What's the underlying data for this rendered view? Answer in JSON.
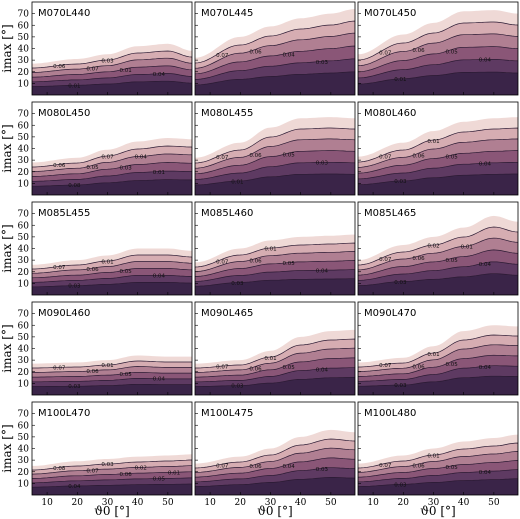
{
  "chart_data": {
    "type": "area",
    "description_grid": "5 rows x 3 columns of filled contour panels",
    "xlabel": "ϑ0 [°]",
    "ylabel": "imax [°]",
    "xlim": [
      5,
      58
    ],
    "ylim": [
      0,
      80
    ],
    "xticks": [
      10,
      20,
      30,
      40,
      50
    ],
    "yticks": [
      10,
      20,
      30,
      40,
      50,
      60,
      70
    ],
    "level_colors": [
      "#3a2448",
      "#5e3a62",
      "#8a5677",
      "#b07f92",
      "#d6adb2",
      "#efd9d6"
    ],
    "panels": [
      {
        "name": "M070L440",
        "ceil": [
          [
            5,
            27
          ],
          [
            20,
            31
          ],
          [
            30,
            35
          ],
          [
            40,
            42
          ],
          [
            50,
            44
          ],
          [
            58,
            38
          ]
        ],
        "labels": [
          "0.06",
          "0.07",
          "0.01",
          "0.04",
          "0.01",
          "0.03"
        ]
      },
      {
        "name": "M070L445",
        "ceil": [
          [
            5,
            32
          ],
          [
            20,
            50
          ],
          [
            30,
            59
          ],
          [
            40,
            66
          ],
          [
            50,
            70
          ],
          [
            58,
            74
          ]
        ],
        "labels": [
          "0.07",
          "0.06",
          "0.04",
          "0.03"
        ]
      },
      {
        "name": "M070L450",
        "ceil": [
          [
            5,
            35
          ],
          [
            20,
            52
          ],
          [
            30,
            62
          ],
          [
            40,
            72
          ],
          [
            50,
            73
          ],
          [
            58,
            70
          ]
        ],
        "labels": [
          "0.07",
          "0.06",
          "0.05",
          "0.04",
          "0.01"
        ]
      },
      {
        "name": "M080L450",
        "ceil": [
          [
            5,
            28
          ],
          [
            20,
            32
          ],
          [
            30,
            39
          ],
          [
            40,
            46
          ],
          [
            50,
            49
          ],
          [
            58,
            48
          ]
        ],
        "labels": [
          "0.06",
          "0.05",
          "0.03",
          "0.01",
          "0.08",
          "0.07",
          "0.04"
        ]
      },
      {
        "name": "M080L455",
        "ceil": [
          [
            5,
            32
          ],
          [
            20,
            45
          ],
          [
            30,
            58
          ],
          [
            40,
            66
          ],
          [
            50,
            67
          ],
          [
            58,
            66
          ]
        ],
        "labels": [
          "0.07",
          "0.06",
          "0.05",
          "0.03",
          "0.01"
        ]
      },
      {
        "name": "M080L460",
        "ceil": [
          [
            5,
            33
          ],
          [
            20,
            45
          ],
          [
            30,
            55
          ],
          [
            40,
            63
          ],
          [
            50,
            66
          ],
          [
            58,
            67
          ]
        ],
        "labels": [
          "0.07",
          "0.06",
          "0.05",
          "0.04",
          "0.03",
          "0.01"
        ]
      },
      {
        "name": "M085L455",
        "ceil": [
          [
            5,
            26
          ],
          [
            20,
            30
          ],
          [
            30,
            34
          ],
          [
            40,
            40
          ],
          [
            50,
            40
          ],
          [
            58,
            38
          ]
        ],
        "labels": [
          "0.07",
          "0.06",
          "0.05",
          "0.04",
          "0.03",
          "0.01"
        ]
      },
      {
        "name": "M085L460",
        "ceil": [
          [
            5,
            28
          ],
          [
            20,
            40
          ],
          [
            30,
            47
          ],
          [
            40,
            50
          ],
          [
            50,
            51
          ],
          [
            58,
            52
          ]
        ],
        "labels": [
          "0.07",
          "0.06",
          "0.05",
          "0.04",
          "0.03",
          "0.01"
        ]
      },
      {
        "name": "M085L465",
        "ceil": [
          [
            5,
            30
          ],
          [
            20,
            43
          ],
          [
            30,
            50
          ],
          [
            40,
            58
          ],
          [
            50,
            68
          ],
          [
            58,
            63
          ]
        ],
        "labels": [
          "0.07",
          "0.06",
          "0.05",
          "0.04",
          "0.03",
          "0.02",
          "0.01"
        ]
      },
      {
        "name": "M090L460",
        "ceil": [
          [
            5,
            27
          ],
          [
            20,
            28
          ],
          [
            30,
            30
          ],
          [
            40,
            34
          ],
          [
            50,
            33
          ],
          [
            58,
            33
          ]
        ],
        "labels": [
          "0.07",
          "0.06",
          "0.05",
          "0.04",
          "0.03",
          "0.01"
        ]
      },
      {
        "name": "M090L465",
        "ceil": [
          [
            5,
            27
          ],
          [
            20,
            30
          ],
          [
            30,
            38
          ],
          [
            40,
            50
          ],
          [
            50,
            55
          ],
          [
            58,
            56
          ]
        ],
        "labels": [
          "0.07",
          "0.06",
          "0.05",
          "0.04",
          "0.03",
          "0.01"
        ]
      },
      {
        "name": "M090L470",
        "ceil": [
          [
            5,
            28
          ],
          [
            20,
            32
          ],
          [
            30,
            42
          ],
          [
            40,
            55
          ],
          [
            50,
            60
          ],
          [
            58,
            59
          ]
        ],
        "labels": [
          "0.07",
          "0.06",
          "0.05",
          "0.04",
          "0.03",
          "0.01"
        ]
      },
      {
        "name": "M100L470",
        "ceil": [
          [
            5,
            25
          ],
          [
            20,
            29
          ],
          [
            30,
            31
          ],
          [
            40,
            33
          ],
          [
            50,
            34
          ],
          [
            58,
            35
          ]
        ],
        "labels": [
          "0.08",
          "0.07",
          "0.06",
          "0.05",
          "0.04",
          "0.03",
          "0.02",
          "0.01"
        ]
      },
      {
        "name": "M100L475",
        "ceil": [
          [
            5,
            27
          ],
          [
            20,
            33
          ],
          [
            30,
            40
          ],
          [
            40,
            50
          ],
          [
            50,
            56
          ],
          [
            58,
            54
          ]
        ],
        "labels": [
          "0.07",
          "0.06",
          "0.04",
          "0.03"
        ]
      },
      {
        "name": "M100L480",
        "ceil": [
          [
            5,
            27
          ],
          [
            20,
            34
          ],
          [
            30,
            40
          ],
          [
            40,
            46
          ],
          [
            50,
            49
          ],
          [
            58,
            52
          ]
        ],
        "labels": [
          "0.07",
          "0.06",
          "0.05",
          "0.04",
          "0.03",
          "0.01"
        ]
      }
    ]
  }
}
